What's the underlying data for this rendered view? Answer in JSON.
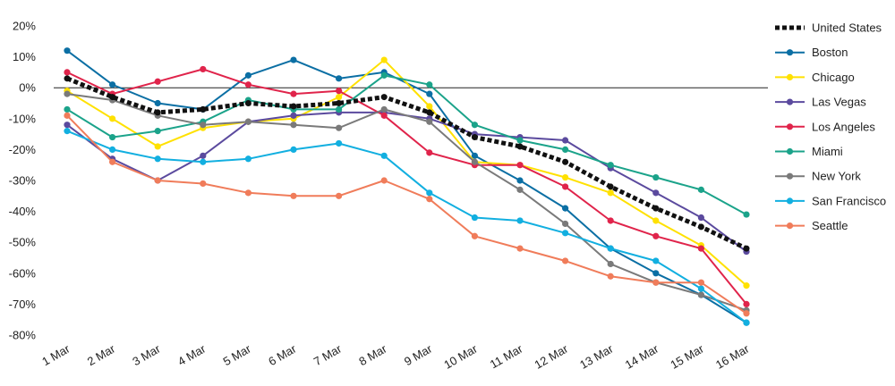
{
  "chart_data": {
    "type": "line",
    "title": "",
    "xlabel": "",
    "ylabel": "",
    "categories": [
      "1 Mar",
      "2 Mar",
      "3 Mar",
      "4 Mar",
      "5 Mar",
      "6 Mar",
      "7 Mar",
      "8 Mar",
      "9 Mar",
      "10 Mar",
      "11 Mar",
      "12 Mar",
      "13 Mar",
      "14 Mar",
      "15 Mar",
      "16 Mar"
    ],
    "ylim": [
      -80,
      20
    ],
    "yticks": [
      20,
      10,
      0,
      -10,
      -20,
      -30,
      -40,
      -50,
      -60,
      -70,
      -80
    ],
    "ytick_labels": [
      "20%",
      "10%",
      "0%",
      "-10%",
      "-20%",
      "-30%",
      "-40%",
      "-50%",
      "-60%",
      "-70%",
      "-80%"
    ],
    "grid": false,
    "zero_line": true,
    "legend_position": "right",
    "series": [
      {
        "name": "United States",
        "color": "#111111",
        "style": "dotted",
        "values": [
          3,
          -3,
          -8,
          -7,
          -5,
          -6,
          -5,
          -3,
          -8,
          -16,
          -19,
          -24,
          -32,
          -39,
          -45,
          -52
        ]
      },
      {
        "name": "Boston",
        "color": "#0b6fa4",
        "style": "solid",
        "values": [
          12,
          1,
          -5,
          -7,
          4,
          9,
          3,
          5,
          -2,
          -22,
          -30,
          -39,
          -52,
          -60,
          -67,
          -76
        ]
      },
      {
        "name": "Chicago",
        "color": "#ffe100",
        "style": "solid",
        "values": [
          -1,
          -10,
          -19,
          -13,
          -11,
          -10,
          -3,
          9,
          -6,
          -24,
          -25,
          -29,
          -34,
          -43,
          -51,
          -64
        ]
      },
      {
        "name": "Las Vegas",
        "color": "#5b4a9e",
        "style": "solid",
        "values": [
          -12,
          -23,
          -30,
          -22,
          -11,
          -9,
          -8,
          -8,
          -10,
          -15,
          -16,
          -17,
          -26,
          -34,
          -42,
          -53
        ]
      },
      {
        "name": "Los Angeles",
        "color": "#e0244b",
        "style": "solid",
        "values": [
          5,
          -2,
          2,
          6,
          1,
          -2,
          -1,
          -9,
          -21,
          -25,
          -25,
          -32,
          -43,
          -48,
          -52,
          -70
        ]
      },
      {
        "name": "Miami",
        "color": "#1ba38a",
        "style": "solid",
        "values": [
          -7,
          -16,
          -14,
          -11,
          -4,
          -7,
          -7,
          4,
          1,
          -12,
          -17,
          -20,
          -25,
          -29,
          -33,
          -41
        ]
      },
      {
        "name": "New York",
        "color": "#7a7a7a",
        "style": "solid",
        "values": [
          -2,
          -4,
          -9,
          -12,
          -11,
          -12,
          -13,
          -7,
          -11,
          -24,
          -33,
          -44,
          -57,
          -63,
          -67,
          -72
        ]
      },
      {
        "name": "San Francisco",
        "color": "#12afe0",
        "style": "solid",
        "values": [
          -14,
          -20,
          -23,
          -24,
          -23,
          -20,
          -18,
          -22,
          -34,
          -42,
          -43,
          -47,
          -52,
          -56,
          -65,
          -76
        ]
      },
      {
        "name": "Seattle",
        "color": "#f07c5a",
        "style": "solid",
        "values": [
          -9,
          -24,
          -30,
          -31,
          -34,
          -35,
          -35,
          -30,
          -36,
          -48,
          -52,
          -56,
          -61,
          -63,
          -63,
          -73
        ]
      }
    ]
  }
}
